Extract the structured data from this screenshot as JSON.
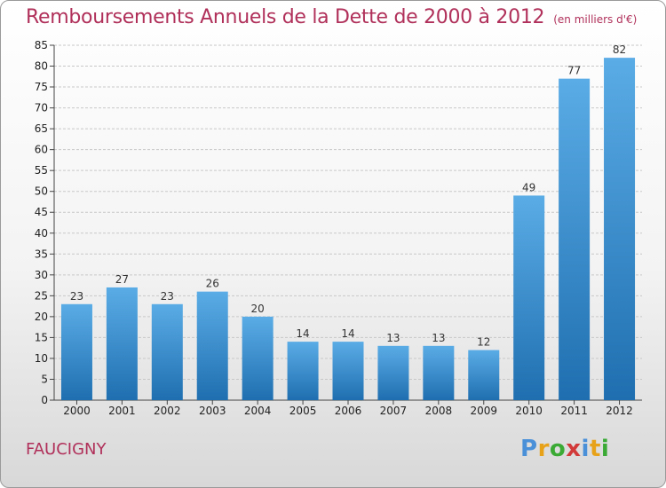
{
  "title": "Remboursements Annuels de la Dette de 2000 à 2012",
  "subtitle": "(en milliers d'€)",
  "location": "FAUCIGNY",
  "logo": {
    "text": "Proxiti",
    "letters": [
      {
        "ch": "P",
        "color": "#4a90d9"
      },
      {
        "ch": "r",
        "color": "#e8a21a"
      },
      {
        "ch": "o",
        "color": "#3aaa35"
      },
      {
        "ch": "x",
        "color": "#d23a3a"
      },
      {
        "ch": "i",
        "color": "#4a90d9"
      },
      {
        "ch": "t",
        "color": "#e8a21a"
      },
      {
        "ch": "i",
        "color": "#3aaa35"
      }
    ]
  },
  "colors": {
    "bar_top": "#5aace6",
    "bar_bottom": "#1f6fb0",
    "title": "#b0305a",
    "grid": "#c8c8c8"
  },
  "chart_data": {
    "type": "bar",
    "categories": [
      "2000",
      "2001",
      "2002",
      "2003",
      "2004",
      "2005",
      "2006",
      "2007",
      "2008",
      "2009",
      "2010",
      "2011",
      "2012"
    ],
    "values": [
      23,
      27,
      23,
      26,
      20,
      14,
      14,
      13,
      13,
      12,
      49,
      77,
      82
    ],
    "ylim": [
      0,
      85
    ],
    "yticks": [
      0,
      5,
      10,
      15,
      20,
      25,
      30,
      35,
      40,
      45,
      50,
      55,
      60,
      65,
      70,
      75,
      80,
      85
    ],
    "grid": true,
    "xlabel": "",
    "ylabel": ""
  }
}
